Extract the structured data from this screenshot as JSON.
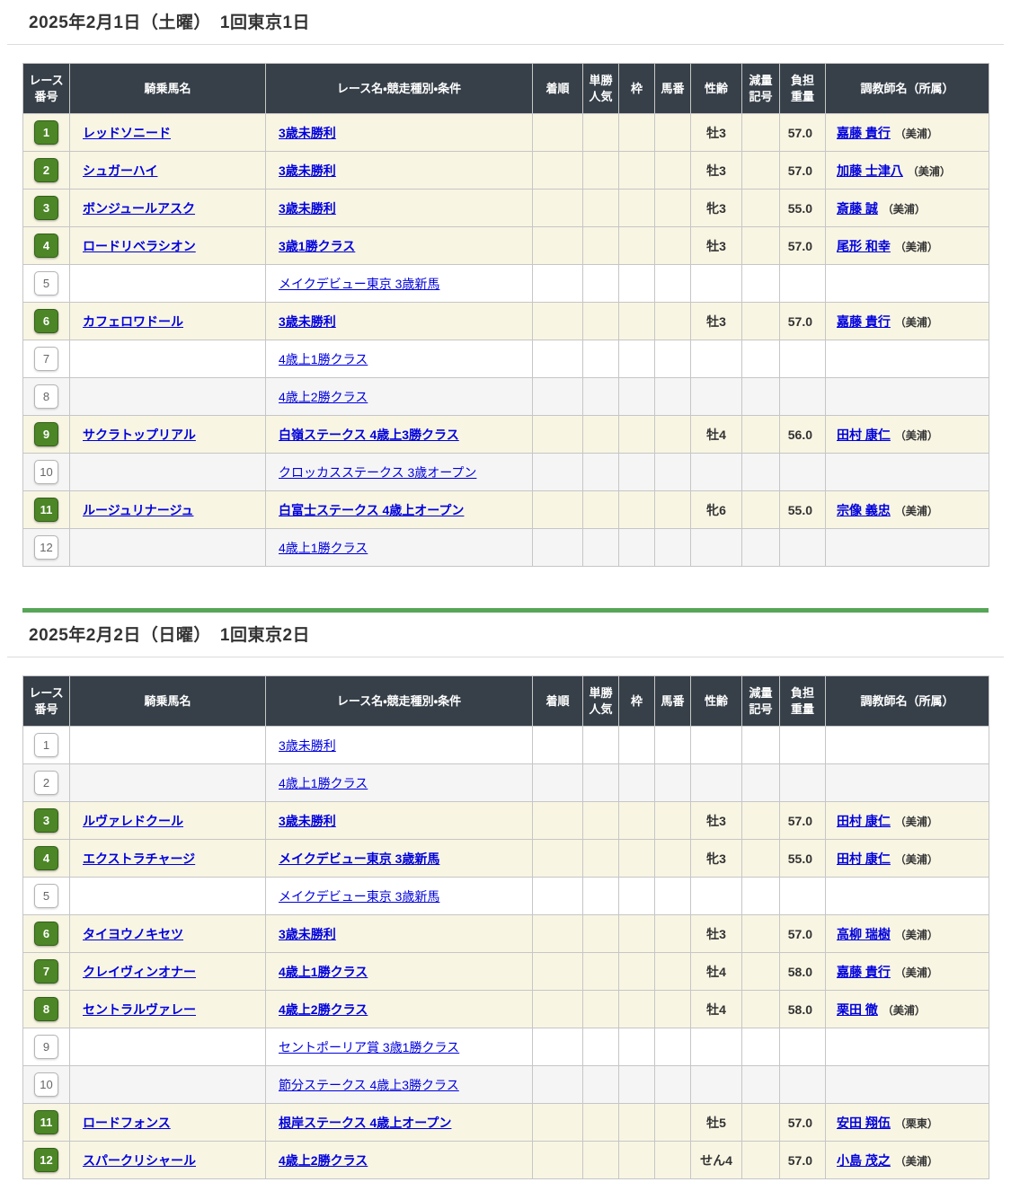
{
  "colors": {
    "header_bg": "#374049",
    "row_highlight": "#f8f5e3",
    "row_alt": "#f5f5f5",
    "badge_green": "#4c8626",
    "link_blue": "#0000dd",
    "divider_green": "#57a657"
  },
  "columns": [
    {
      "key": "no",
      "label": "レース\n番号"
    },
    {
      "key": "horse",
      "label": "騎乗馬名"
    },
    {
      "key": "race",
      "label": "レース名・競走種別・条件"
    },
    {
      "key": "pos",
      "label": "着順"
    },
    {
      "key": "pop",
      "label": "単勝\n人気"
    },
    {
      "key": "waku",
      "label": "枠"
    },
    {
      "key": "uma",
      "label": "馬番"
    },
    {
      "key": "sexage",
      "label": "性齢"
    },
    {
      "key": "reduce",
      "label": "減量\n記号"
    },
    {
      "key": "weight",
      "label": "負担\n重量"
    },
    {
      "key": "trainer",
      "label": "調教師名（所属）"
    }
  ],
  "sections": [
    {
      "heading": "2025年2月1日（土曜）　1回東京1日",
      "rows": [
        {
          "no": "1",
          "horse": "レッドソニード",
          "race": "3歳未勝利",
          "pos": "",
          "pop": "",
          "waku": "",
          "uma": "",
          "sexage": "牡3",
          "reduce": "",
          "weight": "57.0",
          "trainer": "嘉藤 貴行",
          "affiliation": "（美浦）",
          "highlight": true,
          "alt": false
        },
        {
          "no": "2",
          "horse": "シュガーハイ",
          "race": "3歳未勝利",
          "pos": "",
          "pop": "",
          "waku": "",
          "uma": "",
          "sexage": "牡3",
          "reduce": "",
          "weight": "57.0",
          "trainer": "加藤 士津八",
          "affiliation": "（美浦）",
          "highlight": true,
          "alt": false
        },
        {
          "no": "3",
          "horse": "ボンジュールアスク",
          "race": "3歳未勝利",
          "pos": "",
          "pop": "",
          "waku": "",
          "uma": "",
          "sexage": "牝3",
          "reduce": "",
          "weight": "55.0",
          "trainer": "斎藤 誠",
          "affiliation": "（美浦）",
          "highlight": true,
          "alt": false
        },
        {
          "no": "4",
          "horse": "ロードリベラシオン",
          "race": "3歳1勝クラス",
          "pos": "",
          "pop": "",
          "waku": "",
          "uma": "",
          "sexage": "牡3",
          "reduce": "",
          "weight": "57.0",
          "trainer": "尾形 和幸",
          "affiliation": "（美浦）",
          "highlight": true,
          "alt": false
        },
        {
          "no": "5",
          "horse": "",
          "race": "メイクデビュー東京 3歳新馬",
          "pos": "",
          "pop": "",
          "waku": "",
          "uma": "",
          "sexage": "",
          "reduce": "",
          "weight": "",
          "trainer": "",
          "affiliation": "",
          "highlight": false,
          "alt": false
        },
        {
          "no": "6",
          "horse": "カフェロワドール",
          "race": "3歳未勝利",
          "pos": "",
          "pop": "",
          "waku": "",
          "uma": "",
          "sexage": "牡3",
          "reduce": "",
          "weight": "57.0",
          "trainer": "嘉藤 貴行",
          "affiliation": "（美浦）",
          "highlight": true,
          "alt": false
        },
        {
          "no": "7",
          "horse": "",
          "race": "4歳上1勝クラス",
          "pos": "",
          "pop": "",
          "waku": "",
          "uma": "",
          "sexage": "",
          "reduce": "",
          "weight": "",
          "trainer": "",
          "affiliation": "",
          "highlight": false,
          "alt": false
        },
        {
          "no": "8",
          "horse": "",
          "race": "4歳上2勝クラス",
          "pos": "",
          "pop": "",
          "waku": "",
          "uma": "",
          "sexage": "",
          "reduce": "",
          "weight": "",
          "trainer": "",
          "affiliation": "",
          "highlight": false,
          "alt": true
        },
        {
          "no": "9",
          "horse": "サクラトップリアル",
          "race": "白嶺ステークス 4歳上3勝クラス",
          "pos": "",
          "pop": "",
          "waku": "",
          "uma": "",
          "sexage": "牡4",
          "reduce": "",
          "weight": "56.0",
          "trainer": "田村 康仁",
          "affiliation": "（美浦）",
          "highlight": true,
          "alt": false
        },
        {
          "no": "10",
          "horse": "",
          "race": "クロッカスステークス 3歳オープン",
          "pos": "",
          "pop": "",
          "waku": "",
          "uma": "",
          "sexage": "",
          "reduce": "",
          "weight": "",
          "trainer": "",
          "affiliation": "",
          "highlight": false,
          "alt": true
        },
        {
          "no": "11",
          "horse": "ルージュリナージュ",
          "race": "白富士ステークス 4歳上オープン",
          "pos": "",
          "pop": "",
          "waku": "",
          "uma": "",
          "sexage": "牝6",
          "reduce": "",
          "weight": "55.0",
          "trainer": "宗像 義忠",
          "affiliation": "（美浦）",
          "highlight": true,
          "alt": false
        },
        {
          "no": "12",
          "horse": "",
          "race": "4歳上1勝クラス",
          "pos": "",
          "pop": "",
          "waku": "",
          "uma": "",
          "sexage": "",
          "reduce": "",
          "weight": "",
          "trainer": "",
          "affiliation": "",
          "highlight": false,
          "alt": true
        }
      ]
    },
    {
      "heading": "2025年2月2日（日曜）　1回東京2日",
      "rows": [
        {
          "no": "1",
          "horse": "",
          "race": "3歳未勝利",
          "pos": "",
          "pop": "",
          "waku": "",
          "uma": "",
          "sexage": "",
          "reduce": "",
          "weight": "",
          "trainer": "",
          "affiliation": "",
          "highlight": false,
          "alt": false
        },
        {
          "no": "2",
          "horse": "",
          "race": "4歳上1勝クラス",
          "pos": "",
          "pop": "",
          "waku": "",
          "uma": "",
          "sexage": "",
          "reduce": "",
          "weight": "",
          "trainer": "",
          "affiliation": "",
          "highlight": false,
          "alt": true
        },
        {
          "no": "3",
          "horse": "ルヴァレドクール",
          "race": "3歳未勝利",
          "pos": "",
          "pop": "",
          "waku": "",
          "uma": "",
          "sexage": "牡3",
          "reduce": "",
          "weight": "57.0",
          "trainer": "田村 康仁",
          "affiliation": "（美浦）",
          "highlight": true,
          "alt": false
        },
        {
          "no": "4",
          "horse": "エクストラチャージ",
          "race": "メイクデビュー東京 3歳新馬",
          "pos": "",
          "pop": "",
          "waku": "",
          "uma": "",
          "sexage": "牝3",
          "reduce": "",
          "weight": "55.0",
          "trainer": "田村 康仁",
          "affiliation": "（美浦）",
          "highlight": true,
          "alt": false
        },
        {
          "no": "5",
          "horse": "",
          "race": "メイクデビュー東京 3歳新馬",
          "pos": "",
          "pop": "",
          "waku": "",
          "uma": "",
          "sexage": "",
          "reduce": "",
          "weight": "",
          "trainer": "",
          "affiliation": "",
          "highlight": false,
          "alt": false
        },
        {
          "no": "6",
          "horse": "タイヨウノキセツ",
          "race": "3歳未勝利",
          "pos": "",
          "pop": "",
          "waku": "",
          "uma": "",
          "sexage": "牡3",
          "reduce": "",
          "weight": "57.0",
          "trainer": "高柳 瑞樹",
          "affiliation": "（美浦）",
          "highlight": true,
          "alt": false
        },
        {
          "no": "7",
          "horse": "クレイヴィンオナー",
          "race": "4歳上1勝クラス",
          "pos": "",
          "pop": "",
          "waku": "",
          "uma": "",
          "sexage": "牡4",
          "reduce": "",
          "weight": "58.0",
          "trainer": "嘉藤 貴行",
          "affiliation": "（美浦）",
          "highlight": true,
          "alt": false
        },
        {
          "no": "8",
          "horse": "セントラルヴァレー",
          "race": "4歳上2勝クラス",
          "pos": "",
          "pop": "",
          "waku": "",
          "uma": "",
          "sexage": "牡4",
          "reduce": "",
          "weight": "58.0",
          "trainer": "栗田 徹",
          "affiliation": "（美浦）",
          "highlight": true,
          "alt": false
        },
        {
          "no": "9",
          "horse": "",
          "race": "セントポーリア賞 3歳1勝クラス",
          "pos": "",
          "pop": "",
          "waku": "",
          "uma": "",
          "sexage": "",
          "reduce": "",
          "weight": "",
          "trainer": "",
          "affiliation": "",
          "highlight": false,
          "alt": false
        },
        {
          "no": "10",
          "horse": "",
          "race": "節分ステークス 4歳上3勝クラス",
          "pos": "",
          "pop": "",
          "waku": "",
          "uma": "",
          "sexage": "",
          "reduce": "",
          "weight": "",
          "trainer": "",
          "affiliation": "",
          "highlight": false,
          "alt": true
        },
        {
          "no": "11",
          "horse": "ロードフォンス",
          "race": "根岸ステークス 4歳上オープン",
          "pos": "",
          "pop": "",
          "waku": "",
          "uma": "",
          "sexage": "牡5",
          "reduce": "",
          "weight": "57.0",
          "trainer": "安田 翔伍",
          "affiliation": "（栗東）",
          "highlight": true,
          "alt": false
        },
        {
          "no": "12",
          "horse": "スパークリシャール",
          "race": "4歳上2勝クラス",
          "pos": "",
          "pop": "",
          "waku": "",
          "uma": "",
          "sexage": "せん4",
          "reduce": "",
          "weight": "57.0",
          "trainer": "小島 茂之",
          "affiliation": "（美浦）",
          "highlight": true,
          "alt": false
        }
      ]
    }
  ]
}
